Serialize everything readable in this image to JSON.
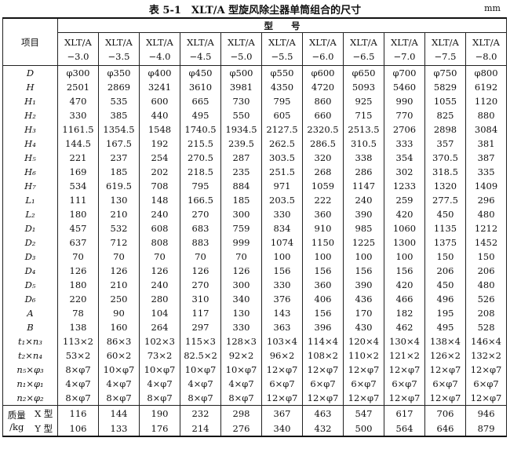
{
  "title": "表 5-1　XLT/A 型旋风除尘器单筒组合的尺寸",
  "unit": "mm",
  "table": {
    "corner": "项目",
    "group_header": "型　　号",
    "models": [
      {
        "name": "XLT/A",
        "suffix": "−3.0"
      },
      {
        "name": "XLT/A",
        "suffix": "−3.5"
      },
      {
        "name": "XLT/A",
        "suffix": "−4.0"
      },
      {
        "name": "XLT/A",
        "suffix": "−4.5"
      },
      {
        "name": "XLT/A",
        "suffix": "−5.0"
      },
      {
        "name": "XLT/A",
        "suffix": "−5.5"
      },
      {
        "name": "XLT/A",
        "suffix": "−6.0"
      },
      {
        "name": "XLT/A",
        "suffix": "−6.5"
      },
      {
        "name": "XLT/A",
        "suffix": "−7.0"
      },
      {
        "name": "XLT/A",
        "suffix": "−7.5"
      },
      {
        "name": "XLT/A",
        "suffix": "−8.0"
      }
    ],
    "rows": [
      {
        "label": "D",
        "values": [
          "φ300",
          "φ350",
          "φ400",
          "φ450",
          "φ500",
          "φ550",
          "φ600",
          "φ650",
          "φ700",
          "φ750",
          "φ800"
        ]
      },
      {
        "label": "H",
        "values": [
          "2501",
          "2869",
          "3241",
          "3610",
          "3981",
          "4350",
          "4720",
          "5093",
          "5460",
          "5829",
          "6192"
        ]
      },
      {
        "label": "H₁",
        "values": [
          "470",
          "535",
          "600",
          "665",
          "730",
          "795",
          "860",
          "925",
          "990",
          "1055",
          "1120"
        ]
      },
      {
        "label": "H₂",
        "values": [
          "330",
          "385",
          "440",
          "495",
          "550",
          "605",
          "660",
          "715",
          "770",
          "825",
          "880"
        ]
      },
      {
        "label": "H₃",
        "values": [
          "1161.5",
          "1354.5",
          "1548",
          "1740.5",
          "1934.5",
          "2127.5",
          "2320.5",
          "2513.5",
          "2706",
          "2898",
          "3084"
        ]
      },
      {
        "label": "H₄",
        "values": [
          "144.5",
          "167.5",
          "192",
          "215.5",
          "239.5",
          "262.5",
          "286.5",
          "310.5",
          "333",
          "357",
          "381"
        ]
      },
      {
        "label": "H₅",
        "values": [
          "221",
          "237",
          "254",
          "270.5",
          "287",
          "303.5",
          "320",
          "338",
          "354",
          "370.5",
          "387"
        ]
      },
      {
        "label": "H₆",
        "values": [
          "169",
          "185",
          "202",
          "218.5",
          "235",
          "251.5",
          "268",
          "286",
          "302",
          "318.5",
          "335"
        ]
      },
      {
        "label": "H₇",
        "values": [
          "534",
          "619.5",
          "708",
          "795",
          "884",
          "971",
          "1059",
          "1147",
          "1233",
          "1320",
          "1409"
        ]
      },
      {
        "label": "L₁",
        "values": [
          "111",
          "130",
          "148",
          "166.5",
          "185",
          "203.5",
          "222",
          "240",
          "259",
          "277.5",
          "296"
        ]
      },
      {
        "label": "L₂",
        "values": [
          "180",
          "210",
          "240",
          "270",
          "300",
          "330",
          "360",
          "390",
          "420",
          "450",
          "480"
        ]
      },
      {
        "label": "D₁",
        "values": [
          "457",
          "532",
          "608",
          "683",
          "759",
          "834",
          "910",
          "985",
          "1060",
          "1135",
          "1212"
        ]
      },
      {
        "label": "D₂",
        "values": [
          "637",
          "712",
          "808",
          "883",
          "999",
          "1074",
          "1150",
          "1225",
          "1300",
          "1375",
          "1452"
        ]
      },
      {
        "label": "D₃",
        "values": [
          "70",
          "70",
          "70",
          "70",
          "70",
          "100",
          "100",
          "100",
          "100",
          "150",
          "150"
        ]
      },
      {
        "label": "D₄",
        "values": [
          "126",
          "126",
          "126",
          "126",
          "126",
          "156",
          "156",
          "156",
          "156",
          "206",
          "206"
        ]
      },
      {
        "label": "D₅",
        "values": [
          "180",
          "210",
          "240",
          "270",
          "300",
          "330",
          "360",
          "390",
          "420",
          "450",
          "480"
        ]
      },
      {
        "label": "D₆",
        "values": [
          "220",
          "250",
          "280",
          "310",
          "340",
          "376",
          "406",
          "436",
          "466",
          "496",
          "526"
        ]
      },
      {
        "label": "A",
        "values": [
          "78",
          "90",
          "104",
          "117",
          "130",
          "143",
          "156",
          "170",
          "182",
          "195",
          "208"
        ]
      },
      {
        "label": "B",
        "values": [
          "138",
          "160",
          "264",
          "297",
          "330",
          "363",
          "396",
          "430",
          "462",
          "495",
          "528"
        ]
      },
      {
        "label": "t₁×n₃",
        "values": [
          "113×2",
          "86×3",
          "102×3",
          "115×3",
          "128×3",
          "103×4",
          "114×4",
          "120×4",
          "130×4",
          "138×4",
          "146×4"
        ]
      },
      {
        "label": "t₂×n₄",
        "values": [
          "53×2",
          "60×2",
          "73×2",
          "82.5×2",
          "92×2",
          "96×2",
          "108×2",
          "110×2",
          "121×2",
          "126×2",
          "132×2"
        ]
      },
      {
        "label": "n₅×φ₃",
        "values": [
          "8×φ7",
          "10×φ7",
          "10×φ7",
          "10×φ7",
          "10×φ7",
          "12×φ7",
          "12×φ7",
          "12×φ7",
          "12×φ7",
          "12×φ7",
          "12×φ7"
        ]
      },
      {
        "label": "n₁×φ₁",
        "values": [
          "4×φ7",
          "4×φ7",
          "4×φ7",
          "4×φ7",
          "4×φ7",
          "6×φ7",
          "6×φ7",
          "6×φ7",
          "6×φ7",
          "6×φ7",
          "6×φ7"
        ]
      },
      {
        "label": "n₂×φ₂",
        "values": [
          "8×φ7",
          "8×φ7",
          "8×φ7",
          "8×φ7",
          "8×φ7",
          "12×φ7",
          "12×φ7",
          "12×φ7",
          "12×φ7",
          "12×φ7",
          "12×φ7"
        ]
      }
    ],
    "weight_label": "质量",
    "weight_unit": "/kg",
    "weight_rows": [
      {
        "label": "X 型",
        "values": [
          "116",
          "144",
          "190",
          "232",
          "298",
          "367",
          "463",
          "547",
          "617",
          "706",
          "946"
        ]
      },
      {
        "label": "Y 型",
        "values": [
          "106",
          "133",
          "176",
          "214",
          "276",
          "340",
          "432",
          "500",
          "564",
          "646",
          "879"
        ]
      }
    ]
  }
}
